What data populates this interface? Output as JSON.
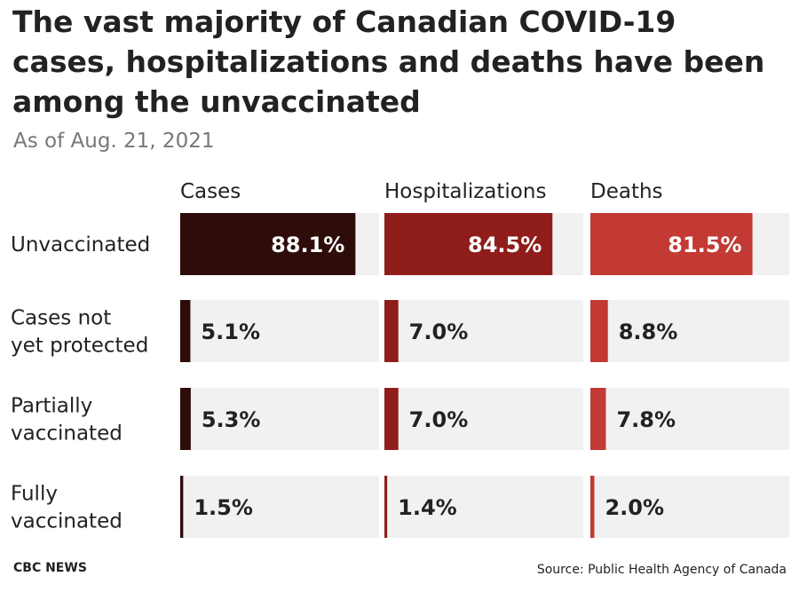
{
  "chart_data": {
    "type": "bar",
    "title": "The vast majority of Canadian COVID-19 cases, hospitalizations and deaths have been among the unvaccinated",
    "subtitle": "As of Aug. 21, 2021",
    "categories": [
      "Unvaccinated",
      "Cases not yet protected",
      "Partially vaccinated",
      "Fully vaccinated"
    ],
    "category_lines": [
      [
        "Unvaccinated"
      ],
      [
        "Cases not",
        "yet protected"
      ],
      [
        "Partially",
        "vaccinated"
      ],
      [
        "Fully",
        "vaccinated"
      ]
    ],
    "series": [
      {
        "name": "Cases",
        "values": [
          88.1,
          5.1,
          5.3,
          1.5
        ],
        "labels": [
          "88.1%",
          "5.1%",
          "5.3%",
          "1.5%"
        ],
        "color": "#2e0c0a"
      },
      {
        "name": "Hospitalizations",
        "values": [
          84.5,
          7.0,
          7.0,
          1.4
        ],
        "labels": [
          "84.5%",
          "7.0%",
          "7.0%",
          "1.4%"
        ],
        "color": "#8f1d1a"
      },
      {
        "name": "Deaths",
        "values": [
          81.5,
          8.8,
          7.8,
          2.0
        ],
        "labels": [
          "81.5%",
          "8.8%",
          "7.8%",
          "2.0%"
        ],
        "color": "#c23a33"
      }
    ],
    "xlim": [
      0,
      100
    ],
    "track_color": "#f1f1f1",
    "xlabel": "",
    "ylabel": ""
  },
  "footer": {
    "credit": "CBC NEWS",
    "source": "Source: Public Health Agency of Canada"
  }
}
